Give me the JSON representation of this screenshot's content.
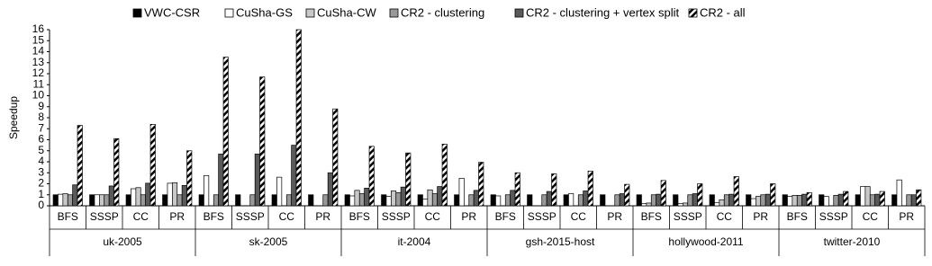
{
  "chart_data": {
    "type": "bar",
    "y_label": "Speedup",
    "groups": [
      {
        "label": "uk-2005",
        "categories": [
          "BFS",
          "SSSP",
          "CC",
          "PR"
        ]
      },
      {
        "label": "sk-2005",
        "categories": [
          "BFS",
          "SSSP",
          "CC",
          "PR"
        ]
      },
      {
        "label": "it-2004",
        "categories": [
          "BFS",
          "SSSP",
          "CC",
          "PR"
        ]
      },
      {
        "label": "gsh-2015-host",
        "categories": [
          "BFS",
          "SSSP",
          "CC",
          "PR"
        ]
      },
      {
        "label": "hollywood-2011",
        "categories": [
          "BFS",
          "SSSP",
          "CC",
          "PR"
        ]
      },
      {
        "label": "twitter-2010",
        "categories": [
          "BFS",
          "SSSP",
          "CC",
          "PR"
        ]
      }
    ],
    "series": [
      {
        "name": "VWC-CSR",
        "color": "#000000",
        "values": [
          1,
          1,
          1,
          1,
          1,
          1,
          1,
          1,
          1,
          1,
          1,
          1,
          1,
          1,
          1,
          1,
          1,
          1,
          1,
          1,
          1,
          1,
          1,
          1
        ]
      },
      {
        "name": "CuSha-GS",
        "color": "#ffffff",
        "values": [
          1.05,
          1,
          1.55,
          2.05,
          2.75,
          null,
          2.6,
          null,
          0.9,
          0.85,
          0.6,
          2.5,
          0.9,
          null,
          1.1,
          null,
          0.2,
          0.2,
          0.3,
          0.65,
          0.85,
          0.85,
          1.75,
          2.35
        ]
      },
      {
        "name": "CuSha-CW",
        "color": "#c8c8c8",
        "values": [
          1.1,
          1,
          1.65,
          2.1,
          null,
          null,
          null,
          null,
          1.4,
          1.35,
          1.45,
          null,
          null,
          null,
          null,
          null,
          0.25,
          0.25,
          0.55,
          0.85,
          0.95,
          null,
          1.75,
          null
        ]
      },
      {
        "name": "CR2 - clustering",
        "color": "#999999",
        "values": [
          1,
          1,
          1,
          1,
          1,
          1,
          1,
          1,
          1.1,
          1.2,
          1.1,
          1,
          1,
          1,
          1,
          1,
          1,
          1,
          1,
          1,
          0.95,
          0.95,
          1,
          1
        ]
      },
      {
        "name": "CR2 - clustering + vertex split",
        "color": "#595959",
        "values": [
          1.9,
          1.8,
          2.05,
          1.85,
          4.7,
          4.7,
          5.5,
          3.0,
          1.6,
          1.7,
          1.75,
          1.4,
          1.4,
          1.3,
          1.35,
          1.1,
          1.05,
          1.1,
          1.05,
          1.05,
          1.05,
          1.05,
          1.05,
          1
        ]
      },
      {
        "name": "CR2 - all",
        "color": "#000000",
        "pattern": "diagonal-stripes",
        "values": [
          7.3,
          6.1,
          7.4,
          5.0,
          13.5,
          11.7,
          16,
          8.8,
          5.4,
          4.8,
          5.6,
          3.95,
          3.0,
          2.9,
          3.15,
          1.95,
          2.3,
          2.0,
          2.65,
          2.0,
          1.2,
          1.3,
          1.3,
          1.45
        ]
      }
    ],
    "ylim": [
      0,
      16
    ],
    "yticks": [
      0,
      1,
      2,
      3,
      4,
      5,
      6,
      7,
      8,
      9,
      10,
      11,
      12,
      13,
      14,
      15,
      16
    ],
    "grid": false
  }
}
